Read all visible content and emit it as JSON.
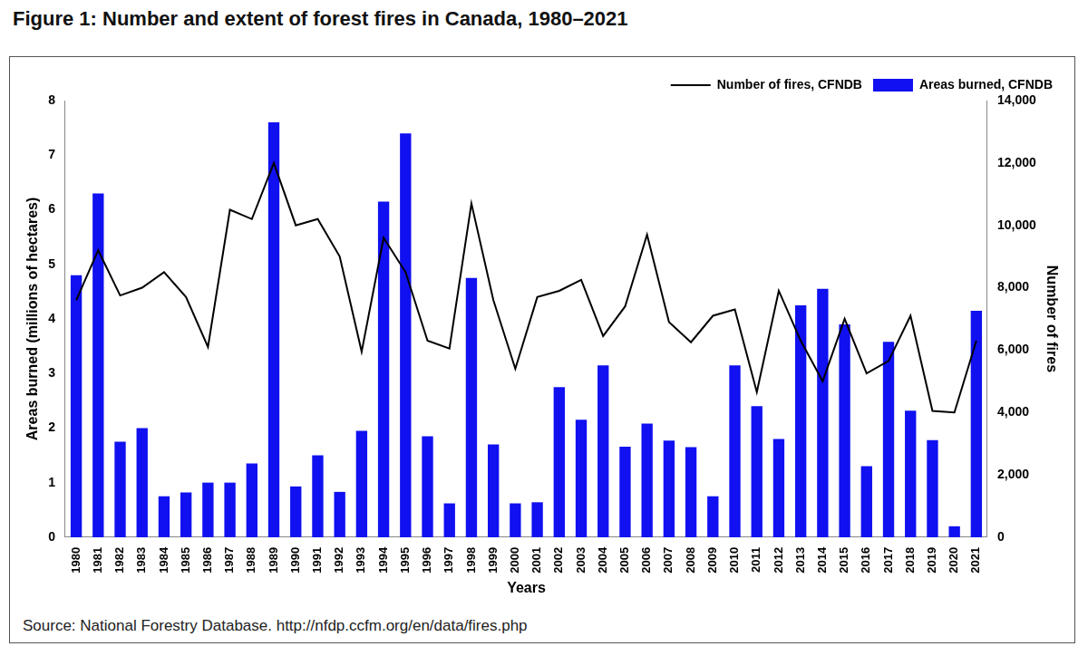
{
  "chart_data": {
    "type": "bar",
    "title": "Figure 1: Number and extent of forest fires in Canada, 1980–2021",
    "source": "Source: National Forestry Database. http://nfdp.ccfm.org/en/data/fires.php",
    "x_label": "Years",
    "y_label": "Areas burned (millions of hectares)",
    "y2_label": "Number of fires",
    "categories": [
      "1980",
      "1981",
      "1982",
      "1983",
      "1984",
      "1985",
      "1986",
      "1987",
      "1988",
      "1989",
      "1990",
      "1991",
      "1992",
      "1993",
      "1994",
      "1995",
      "1996",
      "1997",
      "1998",
      "1999",
      "2000",
      "2001",
      "2002",
      "2003",
      "2004",
      "2005",
      "2006",
      "2007",
      "2008",
      "2009",
      "2010",
      "2011",
      "2012",
      "2013",
      "2014",
      "2015",
      "2016",
      "2017",
      "2018",
      "2019",
      "2020",
      "2021"
    ],
    "series": [
      {
        "name": "Areas burned, CFNDB",
        "type": "bar",
        "color": "#1010f0",
        "values": [
          4.8,
          6.3,
          1.75,
          2.0,
          0.75,
          0.82,
          1.0,
          1.0,
          1.35,
          7.6,
          0.93,
          1.5,
          0.83,
          1.95,
          6.15,
          7.4,
          1.85,
          0.62,
          4.75,
          1.7,
          0.62,
          0.64,
          2.75,
          2.15,
          3.15,
          1.66,
          2.08,
          1.77,
          1.65,
          0.75,
          3.15,
          2.4,
          1.8,
          4.25,
          4.55,
          3.9,
          1.3,
          3.58,
          2.32,
          1.78,
          0.2,
          4.15
        ]
      },
      {
        "name": "Number of fires, CFNDB",
        "type": "line",
        "color": "#000000",
        "axis": "y2",
        "marker": "none",
        "line_style": "solid",
        "values": [
          7600,
          9200,
          7750,
          8000,
          8500,
          7700,
          6100,
          10500,
          10200,
          12000,
          10000,
          10200,
          9000,
          5950,
          9600,
          8500,
          6300,
          6050,
          10700,
          7600,
          5400,
          7700,
          7900,
          8250,
          6450,
          7400,
          9700,
          6900,
          6250,
          7100,
          7300,
          4650,
          7900,
          6300,
          5000,
          7000,
          5250,
          5650,
          7100,
          4050,
          4000,
          6300
        ]
      }
    ],
    "ylim": [
      0,
      8
    ],
    "yticks": [
      0,
      1,
      2,
      3,
      4,
      5,
      6,
      7,
      8
    ],
    "y2lim": [
      0,
      14000
    ],
    "y2ticks": [
      0,
      {
        "value": 2000,
        "label": "2,000"
      },
      {
        "value": 4000,
        "label": "4,000"
      },
      {
        "value": 6000,
        "label": "6,000"
      },
      {
        "value": 8000,
        "label": "8,000"
      },
      {
        "value": 10000,
        "label": "10,000"
      },
      {
        "value": 12000,
        "label": "12,000"
      },
      {
        "value": 14000,
        "label": "14,000"
      }
    ],
    "grid": false,
    "legend": "upper right"
  }
}
